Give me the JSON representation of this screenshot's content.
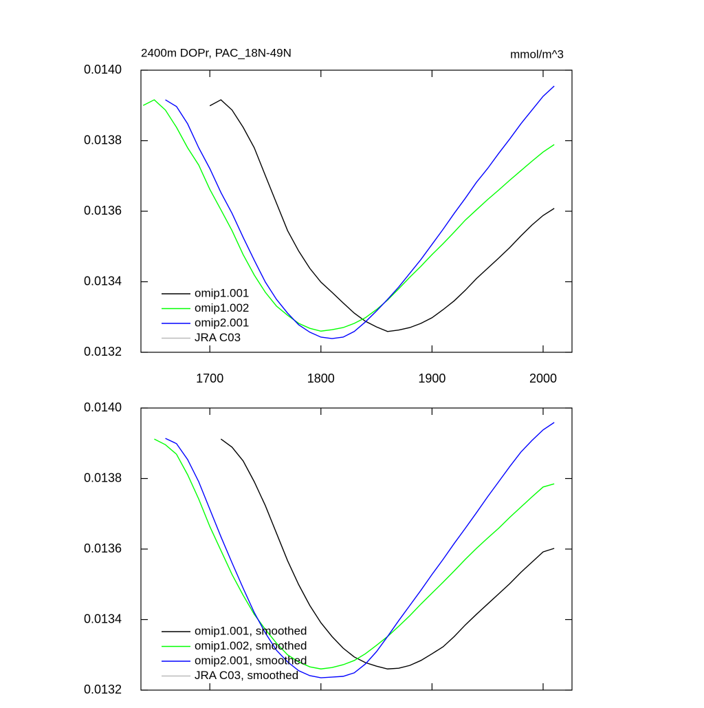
{
  "chart_data": [
    {
      "type": "line",
      "title": "2400m DOPr, PAC_18N-49N",
      "units_label": "mmol/m^3",
      "x": [
        1640,
        1650,
        1660,
        1670,
        1680,
        1690,
        1700,
        1710,
        1720,
        1730,
        1740,
        1750,
        1760,
        1770,
        1780,
        1790,
        1800,
        1810,
        1820,
        1830,
        1840,
        1850,
        1860,
        1870,
        1880,
        1890,
        1900,
        1910,
        1920,
        1930,
        1940,
        1950,
        1960,
        1970,
        1980,
        1990,
        2000,
        2010
      ],
      "series": [
        {
          "name": "omip1.001",
          "color": "#000000",
          "values": [
            null,
            null,
            null,
            null,
            null,
            null,
            0.013899,
            0.013916,
            0.013887,
            0.013838,
            0.01378,
            0.013701,
            0.013623,
            0.013545,
            0.013487,
            0.013438,
            0.013399,
            0.01337,
            0.01334,
            0.013311,
            0.013288,
            0.013272,
            0.013259,
            0.013263,
            0.01327,
            0.013282,
            0.013298,
            0.013321,
            0.013346,
            0.013376,
            0.013409,
            0.013438,
            0.013467,
            0.013497,
            0.01353,
            0.013561,
            0.013588,
            0.013608
          ]
        },
        {
          "name": "omip1.002",
          "color": "#00ff00",
          "values": [
            0.0139,
            0.013916,
            0.013887,
            0.013838,
            0.01378,
            0.013731,
            0.013662,
            0.013604,
            0.013545,
            0.013477,
            0.013419,
            0.01337,
            0.013331,
            0.013305,
            0.013282,
            0.013268,
            0.01326,
            0.013264,
            0.01327,
            0.013282,
            0.013298,
            0.013321,
            0.013348,
            0.01338,
            0.013413,
            0.013444,
            0.013477,
            0.013508,
            0.013541,
            0.013575,
            0.013604,
            0.013633,
            0.01366,
            0.013688,
            0.013715,
            0.013742,
            0.013768,
            0.013789
          ]
        },
        {
          "name": "omip2.001",
          "color": "#0000ff",
          "values": [
            null,
            null,
            0.013916,
            0.013897,
            0.013848,
            0.01378,
            0.013721,
            0.013653,
            0.013594,
            0.013526,
            0.013461,
            0.013399,
            0.01335,
            0.013311,
            0.013278,
            0.013257,
            0.013243,
            0.013239,
            0.013243,
            0.013259,
            0.013286,
            0.013317,
            0.01335,
            0.013385,
            0.013424,
            0.013463,
            0.013506,
            0.013549,
            0.013594,
            0.013637,
            0.013682,
            0.013721,
            0.013764,
            0.013805,
            0.013848,
            0.013887,
            0.013926,
            0.013955
          ]
        },
        {
          "name": "JRA C03",
          "color": "#bbbbbb",
          "values": [
            null,
            null,
            null,
            null,
            null,
            null,
            null,
            null,
            null,
            null,
            null,
            null,
            null,
            null,
            null,
            null,
            null,
            null,
            null,
            null,
            null,
            null,
            null,
            null,
            null,
            null,
            null,
            null,
            null,
            null,
            null,
            null,
            null,
            null,
            null,
            null,
            null,
            null
          ]
        }
      ],
      "xlim": [
        1638,
        2026
      ],
      "xticks": [
        1700,
        1800,
        1900,
        2000
      ],
      "ylim": [
        0.0132,
        0.014
      ],
      "yticks": [
        0.0132,
        0.0134,
        0.0136,
        0.0138,
        {
          "value": 0.014,
          "label": "0.0140"
        }
      ],
      "legend": "lower left"
    },
    {
      "type": "line",
      "x": [
        1640,
        1650,
        1660,
        1670,
        1680,
        1690,
        1700,
        1710,
        1720,
        1730,
        1740,
        1750,
        1760,
        1770,
        1780,
        1790,
        1800,
        1810,
        1820,
        1830,
        1840,
        1850,
        1860,
        1870,
        1880,
        1890,
        1900,
        1910,
        1920,
        1930,
        1940,
        1950,
        1960,
        1970,
        1980,
        1990,
        2000,
        2010
      ],
      "series": [
        {
          "name": "omip1.001, smoothed",
          "color": "#000000",
          "values": [
            null,
            null,
            null,
            null,
            null,
            null,
            null,
            0.013912,
            0.013889,
            0.01385,
            0.013791,
            0.013723,
            0.013645,
            0.013567,
            0.013499,
            0.01344,
            0.013391,
            0.013352,
            0.013319,
            0.013294,
            0.013278,
            0.013268,
            0.01326,
            0.013262,
            0.01327,
            0.013284,
            0.013303,
            0.013323,
            0.013352,
            0.013385,
            0.013415,
            0.013444,
            0.013473,
            0.013502,
            0.013534,
            0.013563,
            0.013592,
            0.013602
          ]
        },
        {
          "name": "omip1.002, smoothed",
          "color": "#00ff00",
          "values": [
            null,
            0.013912,
            0.013896,
            0.013869,
            0.013811,
            0.013742,
            0.013664,
            0.013596,
            0.013528,
            0.013469,
            0.013415,
            0.013372,
            0.013333,
            0.0133,
            0.01328,
            0.013266,
            0.01326,
            0.013264,
            0.013272,
            0.013284,
            0.013303,
            0.013327,
            0.013352,
            0.013381,
            0.013411,
            0.013444,
            0.013475,
            0.013506,
            0.013538,
            0.013571,
            0.013602,
            0.013631,
            0.013659,
            0.01369,
            0.013719,
            0.013748,
            0.013776,
            0.013785
          ]
        },
        {
          "name": "omip2.001, smoothed",
          "color": "#0000ff",
          "values": [
            null,
            null,
            0.013914,
            0.013899,
            0.013854,
            0.013791,
            0.013713,
            0.013635,
            0.013561,
            0.013489,
            0.01342,
            0.013362,
            0.013313,
            0.01328,
            0.013255,
            0.013241,
            0.013235,
            0.013237,
            0.013239,
            0.013249,
            0.013274,
            0.013309,
            0.013352,
            0.013397,
            0.01344,
            0.013483,
            0.013528,
            0.013571,
            0.013616,
            0.013659,
            0.013703,
            0.013748,
            0.013791,
            0.013834,
            0.013875,
            0.013908,
            0.013938,
            0.013959
          ]
        },
        {
          "name": "JRA C03, smoothed",
          "color": "#bbbbbb",
          "values": [
            null,
            null,
            null,
            null,
            null,
            null,
            null,
            null,
            null,
            null,
            null,
            null,
            null,
            null,
            null,
            null,
            null,
            null,
            null,
            null,
            null,
            null,
            null,
            null,
            null,
            null,
            null,
            null,
            null,
            null,
            null,
            null,
            null,
            null,
            null,
            null,
            null,
            null
          ]
        }
      ],
      "xlim": [
        1638,
        2026
      ],
      "xticks": [
        1700,
        1800,
        1900,
        2000
      ],
      "ylim": [
        0.0132,
        0.014
      ],
      "yticks": [
        0.0132,
        0.0134,
        0.0136,
        0.0138,
        {
          "value": 0.014,
          "label": "0.0140"
        }
      ],
      "legend": "lower left"
    }
  ]
}
